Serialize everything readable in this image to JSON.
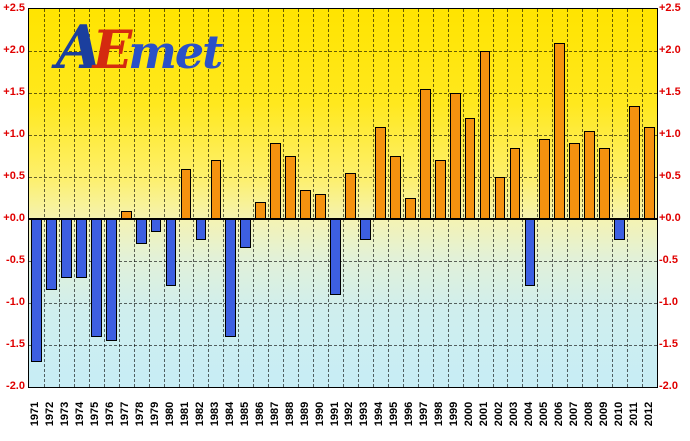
{
  "logo": {
    "a": "A",
    "e": "E",
    "met": "met"
  },
  "chart_data": {
    "type": "bar",
    "title": "",
    "xlabel": "",
    "ylabel": "",
    "ylim": [
      -2.0,
      2.5
    ],
    "grid": true,
    "categories": [
      "1971",
      "1972",
      "1973",
      "1974",
      "1975",
      "1976",
      "1977",
      "1978",
      "1979",
      "1980",
      "1981",
      "1982",
      "1983",
      "1984",
      "1985",
      "1986",
      "1987",
      "1988",
      "1989",
      "1990",
      "1991",
      "1992",
      "1993",
      "1994",
      "1995",
      "1996",
      "1997",
      "1998",
      "1999",
      "2000",
      "2001",
      "2002",
      "2003",
      "2004",
      "2005",
      "2006",
      "2007",
      "2008",
      "2009",
      "2010",
      "2011",
      "2012"
    ],
    "values": [
      -1.7,
      -0.85,
      -0.7,
      -0.7,
      -1.4,
      -1.45,
      0.1,
      -0.3,
      -0.15,
      -0.8,
      0.6,
      -0.25,
      0.7,
      -1.4,
      -0.35,
      0.2,
      0.9,
      0.75,
      0.35,
      0.3,
      -0.9,
      0.55,
      -0.25,
      1.1,
      0.75,
      0.25,
      1.55,
      0.7,
      1.5,
      1.2,
      2.0,
      0.5,
      0.85,
      -0.8,
      0.95,
      2.1,
      0.9,
      1.05,
      0.85,
      -0.25,
      1.35,
      1.1
    ],
    "yticks": [
      {
        "value": 2.5,
        "label": "+2.5"
      },
      {
        "value": 2.0,
        "label": "+2.0"
      },
      {
        "value": 1.5,
        "label": "+1.5"
      },
      {
        "value": 1.0,
        "label": "+1.0"
      },
      {
        "value": 0.5,
        "label": "+0.5"
      },
      {
        "value": 0.0,
        "label": "+0.0"
      },
      {
        "value": -0.5,
        "label": "-0.5"
      },
      {
        "value": -1.0,
        "label": "-1.0"
      },
      {
        "value": -1.5,
        "label": "-1.5"
      },
      {
        "value": -2.0,
        "label": "-2.0"
      }
    ],
    "colors": {
      "positive_bar": "#F5920F",
      "negative_bar": "#3D5FE1",
      "tick_label": "#E00000",
      "year_label": "#000000",
      "grid": "#000000"
    },
    "legend": null
  }
}
